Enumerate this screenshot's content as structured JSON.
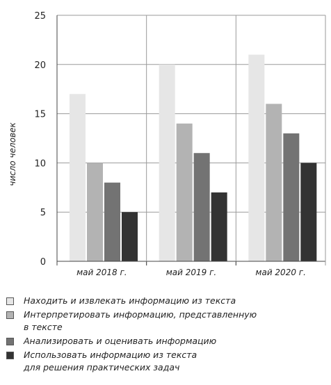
{
  "chart_data": {
    "type": "bar",
    "categories": [
      "май 2018 г.",
      "май 2019 г.",
      "май 2020 г."
    ],
    "series": [
      {
        "name": "Находить и извлекать информацию из текста",
        "values": [
          17,
          20,
          21
        ],
        "color": "#e6e6e6"
      },
      {
        "name": "Интерпретировать информацию, представленную в тексте",
        "values": [
          10,
          14,
          16
        ],
        "color": "#b3b3b3"
      },
      {
        "name": "Анализировать и оценивать информацию",
        "values": [
          8,
          11,
          13
        ],
        "color": "#737373"
      },
      {
        "name": "Использовать информацию из текста для решения практических задач",
        "values": [
          5,
          7,
          10
        ],
        "color": "#333333"
      }
    ],
    "ylabel": "число человек",
    "ylim": [
      0,
      25
    ],
    "yticks": [
      0,
      5,
      10,
      15,
      20,
      25
    ],
    "grid": true,
    "legend_position": "bottom"
  },
  "legend": [
    {
      "lines": [
        "Находить и извлекать информацию из текста"
      ]
    },
    {
      "lines": [
        "Интерпретировать информацию, представленную",
        "в тексте"
      ]
    },
    {
      "lines": [
        "Анализировать и оценивать информацию"
      ]
    },
    {
      "lines": [
        "Использовать информацию из текста",
        "для решения практических задач"
      ]
    }
  ]
}
